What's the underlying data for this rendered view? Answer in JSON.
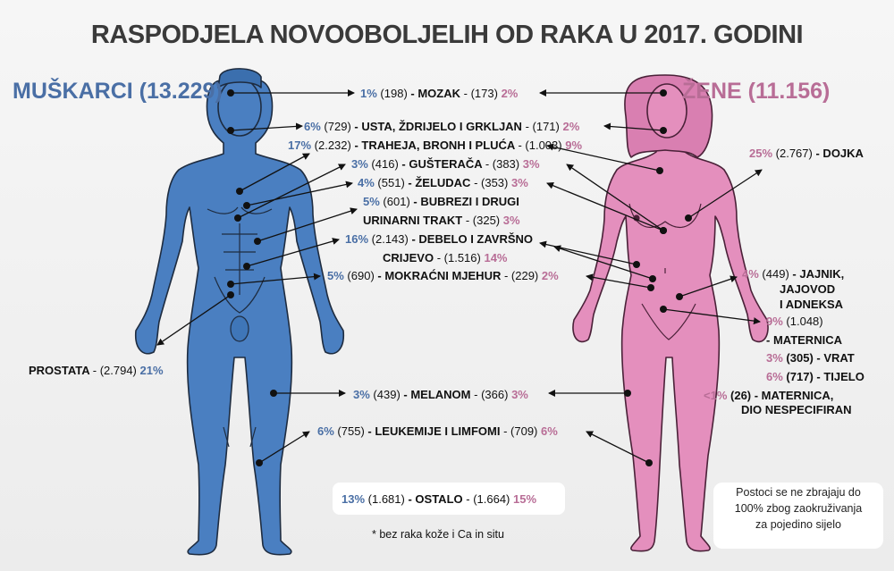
{
  "title": "RASPODJELA NOVOOBOLJELIH OD RAKA U 2017. GODINI",
  "men_header": "MUŠKARCI (13.229)",
  "women_header": "ŽENE (11.156)",
  "colors": {
    "men": "#4a7fc1",
    "women": "#e48fbd",
    "men_text": "#4a6fa5",
    "women_text": "#b86d96"
  },
  "rows": {
    "brain": {
      "mp": "1%",
      "mc": "(198)",
      "name": "MOZAK",
      "fc": "- (173)",
      "fp": "2%"
    },
    "mouth": {
      "mp": "6%",
      "mc": "(729)",
      "name": "USTA, ŽDRIJELO I GRKLJAN",
      "fc": "- (171)",
      "fp": "2%"
    },
    "lung": {
      "mp": "17%",
      "mc": "(2.232)",
      "name": "TRAHEJA, BRONH I PLUĆA",
      "fc": "- (1.003)",
      "fp": "9%"
    },
    "pancreas": {
      "mp": "3%",
      "mc": "(416)",
      "name": "GUŠTERAČA",
      "fc": "- (383)",
      "fp": "3%"
    },
    "stomach": {
      "mp": "4%",
      "mc": "(551)",
      "name": "ŽELUDAC",
      "fc": "- (353)",
      "fp": "3%"
    },
    "kidney": {
      "mp": "5%",
      "mc": "(601)",
      "name1": "BUBREZI I DRUGI",
      "name2": "URINARNI TRAKT",
      "fc": "- (325)",
      "fp": "3%"
    },
    "colon": {
      "mp": "16%",
      "mc": "(2.143)",
      "name1": "DEBELO I ZAVRŠNO",
      "name2": "CRIJEVO",
      "fc": "- (1.516)",
      "fp": "14%"
    },
    "bladder": {
      "mp": "5%",
      "mc": "(690)",
      "name": "MOKRAĆNI MJEHUR",
      "fc": "- (229)",
      "fp": "2%"
    },
    "melanoma": {
      "mp": "3%",
      "mc": "(439)",
      "name": "MELANOM",
      "fc": "- (366)",
      "fp": "3%"
    },
    "leukemia": {
      "mp": "6%",
      "mc": "(755)",
      "name": "LEUKEMIJE I LIMFOMI",
      "fc": "- (709)",
      "fp": "6%"
    },
    "other": {
      "mp": "13%",
      "mc": "(1.681)",
      "name": "OSTALO",
      "fc": "- (1.664)",
      "fp": "15%"
    }
  },
  "prostate": {
    "name": "PROSTATA",
    "count": "- (2.794)",
    "pct": "21%"
  },
  "breast": {
    "pct": "25%",
    "count": "(2.767)",
    "name": "- DOJKA"
  },
  "ovary": {
    "pct": "4%",
    "count": "(449)",
    "line1": "- JAJNIK,",
    "line2": "JAJOVOD",
    "line3": "I ADNEKSA"
  },
  "uterus": {
    "pct": "9%",
    "count": "(1.048)",
    "name": "- MATERNICA",
    "cervix_pct": "3%",
    "cervix": "(305) - VRAT",
    "body_pct": "6%",
    "body": "(717) - TIJELO",
    "unspec_pct": "<1%",
    "unspec": "(26) - MATERNICA,",
    "unspec2": "DIO NESPECIFIRAN"
  },
  "footnote": "* bez raka kože i Ca in situ",
  "note": {
    "l1": "Postoci se ne zbrajaju do",
    "l2": "100% zbog zaokruživanja",
    "l3": "za pojedino sijelo"
  }
}
